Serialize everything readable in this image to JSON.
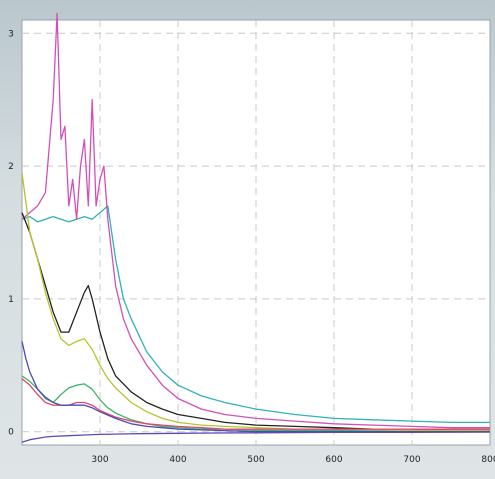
{
  "chart_data": {
    "type": "line",
    "title": "",
    "xlabel": "",
    "ylabel": "",
    "xlim": [
      200,
      800
    ],
    "ylim": [
      -0.1,
      3.1
    ],
    "xticks": [
      300,
      400,
      500,
      600,
      700
    ],
    "xtick_labels": [
      "300",
      "400",
      "500",
      "600",
      "700"
    ],
    "edge_label": "800",
    "yticks": [
      0,
      1,
      2,
      3
    ],
    "ytick_labels": [
      "0",
      "1",
      "2",
      "3"
    ],
    "grid": true,
    "series": [
      {
        "color": "#2fb2b8",
        "x": [
          200,
          210,
          220,
          230,
          240,
          250,
          260,
          270,
          280,
          290,
          300,
          310,
          320,
          330,
          340,
          360,
          380,
          400,
          430,
          460,
          500,
          550,
          600,
          650,
          700,
          750,
          800
        ],
        "y": [
          1.6,
          1.62,
          1.58,
          1.6,
          1.62,
          1.6,
          1.58,
          1.6,
          1.62,
          1.6,
          1.65,
          1.7,
          1.3,
          1.0,
          0.85,
          0.6,
          0.45,
          0.35,
          0.27,
          0.22,
          0.17,
          0.13,
          0.1,
          0.09,
          0.08,
          0.07,
          0.07
        ]
      },
      {
        "color": "#d44fb5",
        "x": [
          200,
          210,
          220,
          230,
          240,
          245,
          250,
          255,
          260,
          265,
          270,
          275,
          280,
          285,
          290,
          295,
          300,
          305,
          310,
          320,
          330,
          340,
          360,
          380,
          400,
          430,
          460,
          500,
          550,
          600,
          650,
          700,
          750,
          800
        ],
        "y": [
          1.6,
          1.65,
          1.7,
          1.8,
          2.5,
          3.15,
          2.2,
          2.3,
          1.7,
          1.9,
          1.6,
          2.0,
          2.2,
          1.7,
          2.5,
          1.7,
          1.9,
          2.0,
          1.6,
          1.1,
          0.85,
          0.7,
          0.5,
          0.35,
          0.25,
          0.17,
          0.13,
          0.1,
          0.08,
          0.06,
          0.05,
          0.04,
          0.03,
          0.03
        ]
      },
      {
        "color": "#222222",
        "x": [
          200,
          210,
          220,
          230,
          240,
          250,
          260,
          270,
          280,
          285,
          290,
          300,
          310,
          320,
          340,
          360,
          380,
          400,
          430,
          460,
          500,
          550,
          600,
          650,
          700,
          750,
          800
        ],
        "y": [
          1.65,
          1.5,
          1.3,
          1.1,
          0.9,
          0.75,
          0.75,
          0.9,
          1.05,
          1.1,
          1.0,
          0.75,
          0.55,
          0.42,
          0.3,
          0.22,
          0.17,
          0.13,
          0.1,
          0.07,
          0.05,
          0.04,
          0.03,
          0.02,
          0.02,
          0.01,
          0.01
        ]
      },
      {
        "color": "#b7c32e",
        "x": [
          200,
          210,
          220,
          230,
          240,
          250,
          260,
          270,
          280,
          290,
          300,
          310,
          320,
          340,
          360,
          380,
          400,
          430,
          460,
          500,
          550,
          600,
          700,
          800
        ],
        "y": [
          1.95,
          1.5,
          1.3,
          1.05,
          0.85,
          0.7,
          0.65,
          0.68,
          0.7,
          0.62,
          0.5,
          0.4,
          0.33,
          0.22,
          0.15,
          0.1,
          0.07,
          0.05,
          0.04,
          0.03,
          0.02,
          0.02,
          0.01,
          0.01
        ]
      },
      {
        "color": "#3db56a",
        "x": [
          200,
          210,
          220,
          230,
          240,
          250,
          260,
          270,
          280,
          290,
          300,
          310,
          320,
          340,
          360,
          380,
          400,
          430,
          460,
          500,
          550,
          600,
          700,
          800
        ],
        "y": [
          0.42,
          0.38,
          0.32,
          0.25,
          0.22,
          0.28,
          0.33,
          0.35,
          0.36,
          0.32,
          0.24,
          0.18,
          0.14,
          0.09,
          0.06,
          0.04,
          0.03,
          0.02,
          0.02,
          0.01,
          0.01,
          0.01,
          0.0,
          0.0
        ]
      },
      {
        "color": "#e0486c",
        "x": [
          200,
          210,
          220,
          230,
          240,
          250,
          260,
          270,
          280,
          290,
          300,
          320,
          340,
          360,
          380,
          400,
          430,
          460,
          500,
          550,
          600,
          700,
          800
        ],
        "y": [
          0.4,
          0.35,
          0.28,
          0.22,
          0.2,
          0.2,
          0.2,
          0.22,
          0.22,
          0.2,
          0.16,
          0.11,
          0.08,
          0.06,
          0.05,
          0.04,
          0.03,
          0.02,
          0.02,
          0.02,
          0.02,
          0.02,
          0.02
        ]
      },
      {
        "color": "#4b4ab8",
        "x": [
          200,
          205,
          210,
          220,
          230,
          240,
          250,
          260,
          270,
          280,
          290,
          300,
          320,
          340,
          360,
          380,
          400,
          450,
          500,
          600,
          700,
          800
        ],
        "y": [
          0.68,
          0.55,
          0.45,
          0.32,
          0.26,
          0.22,
          0.2,
          0.2,
          0.2,
          0.2,
          0.18,
          0.15,
          0.1,
          0.06,
          0.04,
          0.03,
          0.02,
          0.01,
          0.0,
          0.0,
          0.0,
          0.0
        ]
      },
      {
        "color": "#5d4bb3",
        "x": [
          200,
          210,
          220,
          230,
          240,
          260,
          280,
          300,
          320,
          350,
          400,
          450,
          500,
          600,
          700,
          800
        ],
        "y": [
          -0.08,
          -0.06,
          -0.05,
          -0.04,
          -0.035,
          -0.03,
          -0.025,
          -0.02,
          -0.018,
          -0.015,
          -0.012,
          -0.01,
          -0.008,
          -0.005,
          -0.004,
          -0.003
        ]
      }
    ]
  }
}
